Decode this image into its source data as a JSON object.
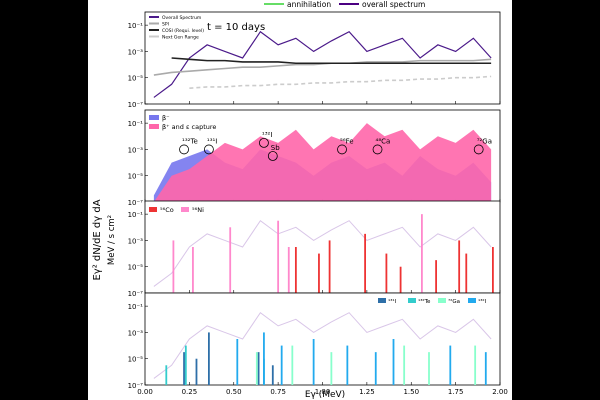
{
  "figure": {
    "top_legend": [
      {
        "label": "annihilation",
        "color": "#66dd66"
      },
      {
        "label": "overall spectrum",
        "color": "#4b0082"
      }
    ],
    "y_axis_label_main": "Eγ² dN/dE dγ dA",
    "y_axis_label_unit": "MeV / s cm²",
    "x_axis_label": "Eγ (MeV)",
    "x_ticks": [
      "0.00",
      "0.25",
      "0.50",
      "0.75",
      "1.00",
      "1.25",
      "1.50",
      "1.75",
      "2.00"
    ],
    "y_ticks": [
      "10⁻¹",
      "10⁻³",
      "10⁻⁵",
      "10⁻⁷"
    ]
  },
  "chart_data": [
    {
      "type": "line",
      "panel": 1,
      "annotation": "t = 10 days",
      "legend_placement": "top-left",
      "xlim": [
        0,
        2
      ],
      "ylim_log10": [
        -7,
        0
      ],
      "x": [
        0.05,
        0.15,
        0.25,
        0.35,
        0.45,
        0.55,
        0.65,
        0.75,
        0.85,
        0.95,
        1.05,
        1.15,
        1.25,
        1.35,
        1.45,
        1.55,
        1.65,
        1.75,
        1.85,
        1.95
      ],
      "series": [
        {
          "name": "Overall Spectrum",
          "color": "#4b1a8a",
          "log10_values": [
            -6.5,
            -5.5,
            -3.5,
            -2.5,
            -3.0,
            -3.5,
            -1.5,
            -2.5,
            -2.0,
            -3.0,
            -2.2,
            -1.5,
            -3.0,
            -2.5,
            -2.0,
            -3.5,
            -2.5,
            -3.0,
            -2.0,
            -3.5
          ]
        },
        {
          "name": "SPI",
          "color": "#aaaaaa",
          "log10_values": [
            -4.8,
            -4.6,
            -4.5,
            -4.4,
            -4.3,
            -4.2,
            -4.2,
            -4.1,
            -4.0,
            -4.0,
            -3.9,
            -3.9,
            -3.8,
            -3.8,
            -3.8,
            -3.7,
            -3.7,
            -3.7,
            -3.7,
            -3.6
          ]
        },
        {
          "name": "COSI (Requi. level)",
          "color": "#222222",
          "log10_values": [
            null,
            -3.5,
            -3.6,
            -3.7,
            -3.7,
            -3.8,
            -3.8,
            -3.8,
            -3.9,
            -3.9,
            -3.9,
            -3.9,
            -3.9,
            -3.9,
            -3.9,
            -3.9,
            -3.9,
            -3.9,
            -3.9,
            -3.9
          ]
        },
        {
          "name": "Next Gen Range",
          "color": "#cccccc",
          "log10_values": [
            null,
            null,
            -5.8,
            -5.7,
            -5.7,
            -5.6,
            -5.6,
            -5.5,
            -5.5,
            -5.4,
            -5.4,
            -5.3,
            -5.3,
            -5.2,
            -5.2,
            -5.1,
            -5.1,
            -5.0,
            -5.0,
            -4.9
          ]
        }
      ]
    },
    {
      "type": "area",
      "panel": 2,
      "legend_placement": "top-left",
      "xlim": [
        0,
        2
      ],
      "ylim_log10": [
        -7,
        0
      ],
      "x": [
        0.05,
        0.15,
        0.25,
        0.35,
        0.45,
        0.55,
        0.65,
        0.75,
        0.85,
        0.95,
        1.05,
        1.15,
        1.25,
        1.35,
        1.45,
        1.55,
        1.65,
        1.75,
        1.85,
        1.95
      ],
      "series": [
        {
          "name": "β⁻",
          "color": "#7777ee",
          "log10_values": [
            -6.5,
            -4.0,
            -3.5,
            -3.0,
            -4.0,
            -4.5,
            -3.0,
            -3.5,
            -4.0,
            -5.0,
            -4.0,
            -3.5,
            -4.5,
            -4.0,
            -5.0,
            -3.5,
            -4.5,
            -5.0,
            -4.0,
            -5.5
          ]
        },
        {
          "name": "β⁺ and ε capture",
          "color": "#ff66aa",
          "log10_values": [
            -7.0,
            -5.0,
            -4.5,
            -3.5,
            -2.5,
            -3.0,
            -2.0,
            -2.5,
            -1.5,
            -3.0,
            -2.0,
            -2.5,
            -1.0,
            -2.0,
            -1.5,
            -3.0,
            -2.0,
            -2.5,
            -1.5,
            -3.0
          ]
        }
      ],
      "annotations": [
        {
          "label": "¹³²Te",
          "x": 0.22,
          "log10_y": -3.0
        },
        {
          "label": "¹³¹I",
          "x": 0.36,
          "log10_y": -3.0
        },
        {
          "label": "¹³²I",
          "x": 0.67,
          "log10_y": -2.5
        },
        {
          "label": "Sb",
          "x": 0.72,
          "log10_y": -3.5
        },
        {
          "label": "⁵⁶Fe",
          "x": 1.11,
          "log10_y": -3.0
        },
        {
          "label": "⁴⁸Ca",
          "x": 1.31,
          "log10_y": -3.0
        },
        {
          "label": "⁷²Ga",
          "x": 1.88,
          "log10_y": -3.0
        }
      ]
    },
    {
      "type": "bar",
      "panel": 3,
      "legend_placement": "top-left",
      "xlim": [
        0,
        2
      ],
      "ylim_log10": [
        -7,
        0
      ],
      "series": [
        {
          "name": "⁵⁶Co",
          "color": "#ee3333",
          "x": [
            0.85,
            0.98,
            1.04,
            1.24,
            1.36,
            1.44,
            1.64,
            1.77,
            1.81,
            1.96
          ],
          "log10_values": [
            -3.5,
            -4.0,
            -3.0,
            -2.5,
            -4.0,
            -5.0,
            -4.5,
            -3.0,
            -4.0,
            -3.5
          ]
        },
        {
          "name": "⁵⁶Ni",
          "color": "#ff88cc",
          "x": [
            0.16,
            0.27,
            0.48,
            0.75,
            0.81,
            1.56
          ],
          "log10_values": [
            -3.0,
            -3.5,
            -2.0,
            -1.5,
            -3.5,
            -1.0
          ]
        }
      ],
      "overall_trace_color": "#d9c6e8",
      "overall_trace_log10": [
        -6.5,
        -5.5,
        -3.5,
        -2.5,
        -3.0,
        -3.5,
        -1.5,
        -2.5,
        -2.0,
        -3.0,
        -2.2,
        -1.5,
        -3.0,
        -2.5,
        -2.0,
        -3.5,
        -2.5,
        -3.0,
        -2.0,
        -3.5
      ]
    },
    {
      "type": "bar",
      "panel": 4,
      "legend_placement": "top-right",
      "xlim": [
        0,
        2
      ],
      "ylim_log10": [
        -7,
        0
      ],
      "series": [
        {
          "name": "¹³¹I",
          "color": "#2e6fa8",
          "x": [
            0.22,
            0.29,
            0.36,
            0.64,
            0.72
          ],
          "log10_values": [
            -4.5,
            -5.0,
            -3.0,
            -4.5,
            -5.5
          ]
        },
        {
          "name": "¹³²Te",
          "color": "#33cccc",
          "x": [
            0.23,
            0.12,
            0.67
          ],
          "log10_values": [
            -4.0,
            -5.5,
            -5.0
          ]
        },
        {
          "name": "⁷²Ga",
          "color": "#88ffcc",
          "x": [
            0.63,
            0.83,
            1.05,
            1.46,
            1.6,
            1.86
          ],
          "log10_values": [
            -4.5,
            -4.0,
            -4.5,
            -4.0,
            -4.5,
            -4.0
          ]
        },
        {
          "name": "¹³²I",
          "color": "#22aaee",
          "x": [
            0.52,
            0.67,
            0.77,
            0.95,
            1.14,
            1.3,
            1.4,
            1.72,
            1.92
          ],
          "log10_values": [
            -3.5,
            -3.0,
            -4.0,
            -3.5,
            -4.0,
            -4.5,
            -3.5,
            -4.0,
            -4.5
          ]
        }
      ],
      "overall_trace_color": "#d9c6e8",
      "overall_trace_log10": [
        -6.5,
        -5.5,
        -3.5,
        -2.5,
        -3.0,
        -3.5,
        -1.5,
        -2.5,
        -2.0,
        -3.0,
        -2.2,
        -1.5,
        -3.0,
        -2.5,
        -2.0,
        -3.5,
        -2.5,
        -3.0,
        -2.0,
        -3.5
      ]
    }
  ]
}
